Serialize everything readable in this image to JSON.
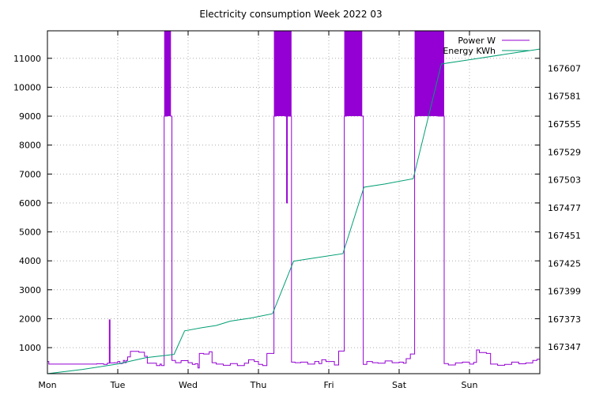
{
  "chart_data": {
    "type": "line",
    "title": "Electricity consumption Week 2022 03",
    "x_categories": [
      "Mon",
      "Tue",
      "Wed",
      "Thu",
      "Fri",
      "Sat",
      "Sun"
    ],
    "x_range_days": [
      0,
      7
    ],
    "y_left": {
      "ticks": [
        "1000",
        "2000",
        "3000",
        "4000",
        "5000",
        "6000",
        "7000",
        "8000",
        "9000",
        "10000",
        "11000"
      ],
      "range": [
        100,
        11950
      ]
    },
    "y_right": {
      "ticks": [
        "167347",
        "167373",
        "167399",
        "167425",
        "167451",
        "167477",
        "167503",
        "167529",
        "167555",
        "167581",
        "167607"
      ],
      "range": [
        167322,
        167642
      ]
    },
    "grid": true,
    "legend_position": "top-right",
    "colors": {
      "power": "#9400d3",
      "energy": "#009e73"
    },
    "series": [
      {
        "name": "Power W",
        "axis": "left",
        "style": "steps",
        "points": [
          [
            0.0,
            520
          ],
          [
            0.02,
            430
          ],
          [
            0.4,
            430
          ],
          [
            0.6,
            430
          ],
          [
            0.7,
            440
          ],
          [
            0.8,
            420
          ],
          [
            0.85,
            460
          ],
          [
            0.88,
            1960
          ],
          [
            0.89,
            470
          ],
          [
            0.95,
            480
          ],
          [
            1.0,
            520
          ],
          [
            1.03,
            450
          ],
          [
            1.06,
            460
          ],
          [
            1.08,
            560
          ],
          [
            1.1,
            480
          ],
          [
            1.12,
            560
          ],
          [
            1.14,
            680
          ],
          [
            1.18,
            870
          ],
          [
            1.3,
            840
          ],
          [
            1.38,
            700
          ],
          [
            1.42,
            460
          ],
          [
            1.55,
            380
          ],
          [
            1.6,
            430
          ],
          [
            1.62,
            380
          ],
          [
            1.66,
            9000
          ],
          [
            1.7,
            12000
          ],
          [
            1.75,
            9000
          ],
          [
            1.77,
            560
          ],
          [
            1.82,
            480
          ],
          [
            1.9,
            550
          ],
          [
            2.0,
            480
          ],
          [
            2.06,
            420
          ],
          [
            2.1,
            440
          ],
          [
            2.14,
            300
          ],
          [
            2.16,
            800
          ],
          [
            2.22,
            780
          ],
          [
            2.3,
            860
          ],
          [
            2.34,
            480
          ],
          [
            2.4,
            430
          ],
          [
            2.5,
            390
          ],
          [
            2.6,
            450
          ],
          [
            2.7,
            380
          ],
          [
            2.8,
            460
          ],
          [
            2.86,
            580
          ],
          [
            2.94,
            520
          ],
          [
            3.0,
            420
          ],
          [
            3.06,
            380
          ],
          [
            3.12,
            800
          ],
          [
            3.18,
            800
          ],
          [
            3.22,
            9000
          ],
          [
            3.25,
            12000
          ],
          [
            3.38,
            9000
          ],
          [
            3.4,
            6000
          ],
          [
            3.41,
            9000
          ],
          [
            3.47,
            500
          ],
          [
            3.52,
            480
          ],
          [
            3.6,
            500
          ],
          [
            3.7,
            430
          ],
          [
            3.8,
            520
          ],
          [
            3.86,
            450
          ],
          [
            3.9,
            580
          ],
          [
            3.96,
            520
          ],
          [
            4.0,
            520
          ],
          [
            4.08,
            400
          ],
          [
            4.14,
            880
          ],
          [
            4.22,
            9000
          ],
          [
            4.25,
            12000
          ],
          [
            4.47,
            9000
          ],
          [
            4.49,
            420
          ],
          [
            4.54,
            520
          ],
          [
            4.62,
            480
          ],
          [
            4.7,
            460
          ],
          [
            4.8,
            540
          ],
          [
            4.9,
            480
          ],
          [
            5.0,
            500
          ],
          [
            5.06,
            460
          ],
          [
            5.1,
            620
          ],
          [
            5.16,
            780
          ],
          [
            5.22,
            9000
          ],
          [
            5.25,
            12000
          ],
          [
            5.55,
            9000
          ],
          [
            5.59,
            9000
          ],
          [
            5.64,
            450
          ],
          [
            5.7,
            400
          ],
          [
            5.8,
            470
          ],
          [
            5.9,
            500
          ],
          [
            6.0,
            430
          ],
          [
            6.06,
            490
          ],
          [
            6.1,
            920
          ],
          [
            6.14,
            830
          ],
          [
            6.24,
            800
          ],
          [
            6.3,
            430
          ],
          [
            6.4,
            390
          ],
          [
            6.5,
            420
          ],
          [
            6.6,
            500
          ],
          [
            6.7,
            440
          ],
          [
            6.8,
            470
          ],
          [
            6.9,
            560
          ],
          [
            6.96,
            600
          ],
          [
            7.0,
            560
          ]
        ]
      },
      {
        "name": "Energy KWh",
        "axis": "right",
        "style": "lines",
        "points": [
          [
            0.0,
            167322
          ],
          [
            0.5,
            167326
          ],
          [
            1.0,
            167331
          ],
          [
            1.4,
            167337
          ],
          [
            1.8,
            167340
          ],
          [
            1.95,
            167362
          ],
          [
            2.2,
            167365
          ],
          [
            2.4,
            167367
          ],
          [
            2.6,
            167371
          ],
          [
            2.9,
            167374
          ],
          [
            3.2,
            167378
          ],
          [
            3.5,
            167427
          ],
          [
            3.8,
            167430
          ],
          [
            4.2,
            167434
          ],
          [
            4.5,
            167496
          ],
          [
            4.8,
            167499
          ],
          [
            5.2,
            167504
          ],
          [
            5.6,
            167611
          ],
          [
            6.0,
            167615
          ],
          [
            6.5,
            167620
          ],
          [
            7.0,
            167625
          ]
        ]
      }
    ]
  }
}
